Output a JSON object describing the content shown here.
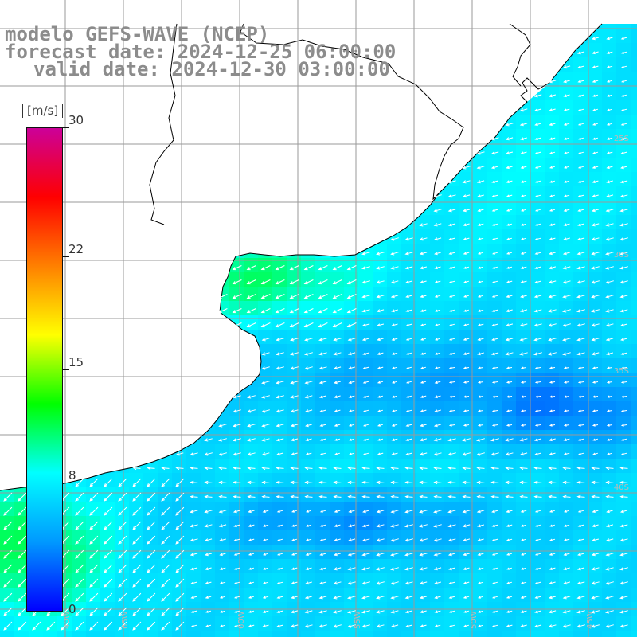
{
  "header": {
    "line1": "modelo GEFS-WAVE (NCEP)",
    "line2": "forecast date: 2024-12-25 06:00:00",
    "line3": "valid date: 2024-12-30 03:00:00"
  },
  "colorbar": {
    "units": "[m/s]",
    "min": 0,
    "max": 30,
    "ticks": [
      {
        "value": 30,
        "label": "30"
      },
      {
        "value": 22,
        "label": "22"
      },
      {
        "value": 15,
        "label": "15"
      },
      {
        "value": 8,
        "label": "8"
      },
      {
        "value": 0,
        "label": "0"
      }
    ],
    "colors": [
      "#0000ff",
      "#0099ff",
      "#00ffff",
      "#00ff00",
      "#ffff00",
      "#ff8000",
      "#ff0000",
      "#cc0099"
    ]
  },
  "map": {
    "variable": "wind speed and direction",
    "land_color": "#ffffff",
    "grid_color": "#9a9a9a",
    "coastline_color": "#000000",
    "lat_labels": [
      "25S",
      "30S",
      "35S",
      "40S"
    ],
    "lon_labels": [
      "65W",
      "60W",
      "55W",
      "50W",
      "45W",
      "40W"
    ]
  }
}
